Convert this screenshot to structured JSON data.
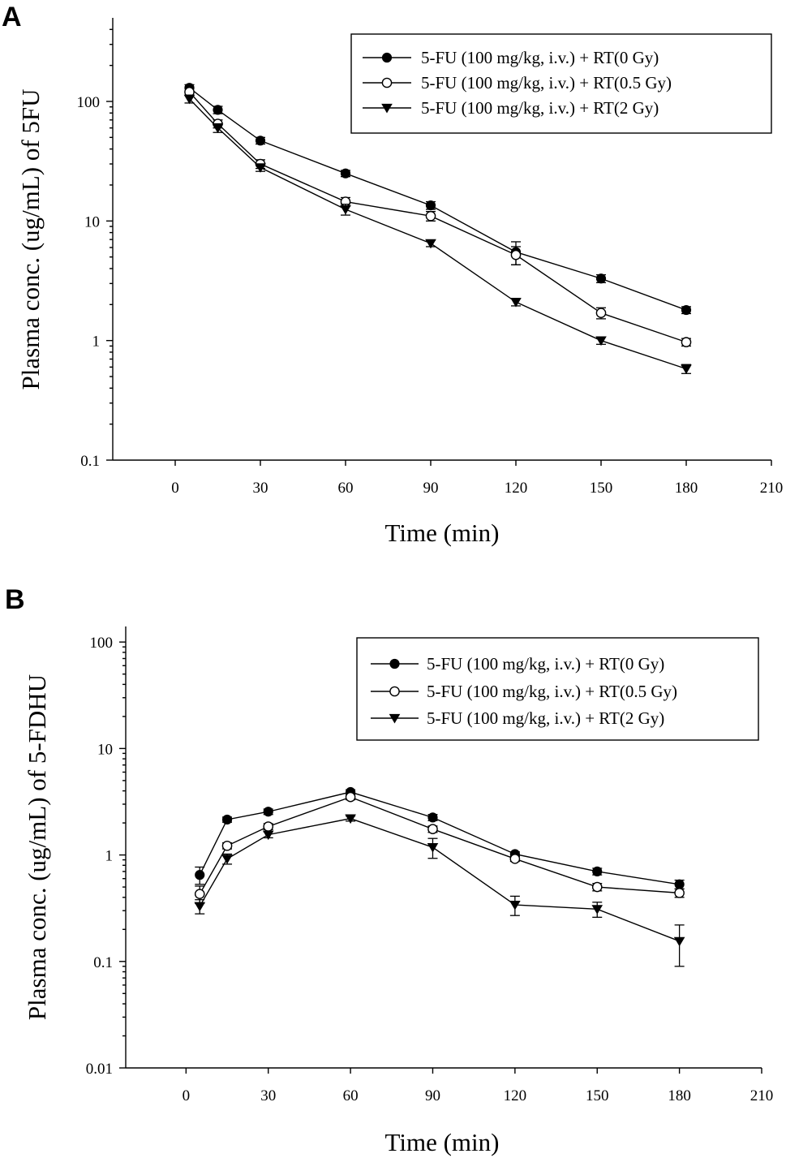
{
  "chart_data": [
    {
      "type": "line",
      "panel_label": "A",
      "title": "",
      "xlabel": "Time (min)",
      "ylabel": "Plasma conc. (ug/mL) of 5FU",
      "y_scale": "log",
      "xlim": [
        -22,
        210
      ],
      "ylim": [
        0.1,
        500
      ],
      "x_ticks": [
        0,
        30,
        60,
        90,
        120,
        150,
        180,
        210
      ],
      "y_ticks": [
        0.1,
        1,
        10,
        100
      ],
      "y_tick_labels": [
        "0.1",
        "1",
        "10",
        "100"
      ],
      "legend_position": "top-right",
      "x": [
        5,
        15,
        30,
        60,
        90,
        120,
        150,
        180
      ],
      "series": [
        {
          "name": "5-FU (100 mg/kg, i.v.) + RT(0 Gy)",
          "marker": "filled-circle",
          "values": [
            130,
            85,
            47,
            25,
            13.5,
            5.5,
            3.3,
            1.8
          ],
          "errors": [
            8,
            6,
            3,
            1.5,
            1,
            1.2,
            0.25,
            0.12
          ]
        },
        {
          "name": "5-FU (100 mg/kg, i.v.) + RT(0.5 Gy)",
          "marker": "open-circle",
          "values": [
            120,
            65,
            30,
            14.5,
            11,
            5.2,
            1.7,
            0.97
          ],
          "errors": [
            8,
            5,
            2.5,
            1.2,
            1,
            0.9,
            0.18,
            0.07
          ]
        },
        {
          "name": "5-FU (100 mg/kg, i.v.) + RT(2 Gy)",
          "marker": "filled-triangle-down",
          "values": [
            105,
            60,
            28,
            12.5,
            6.5,
            2.1,
            1.0,
            0.58
          ],
          "errors": [
            8,
            5,
            2,
            1.3,
            0.4,
            0.15,
            0.07,
            0.05
          ]
        }
      ]
    },
    {
      "type": "line",
      "panel_label": "B",
      "title": "",
      "xlabel": "Time (min)",
      "ylabel": "Plasma conc. (ug/mL) of 5-FDHU",
      "y_scale": "log",
      "xlim": [
        -22,
        210
      ],
      "ylim": [
        0.01,
        140
      ],
      "x_ticks": [
        0,
        30,
        60,
        90,
        120,
        150,
        180,
        210
      ],
      "y_ticks": [
        0.01,
        0.1,
        1,
        10,
        100
      ],
      "y_tick_labels": [
        "0.01",
        "0.1",
        "1",
        "10",
        "100"
      ],
      "legend_position": "top-right",
      "x": [
        5,
        15,
        30,
        60,
        90,
        120,
        150,
        180
      ],
      "series": [
        {
          "name": "5-FU (100 mg/kg, i.v.) + RT(0 Gy)",
          "marker": "filled-circle",
          "values": [
            0.65,
            2.15,
            2.55,
            3.9,
            2.25,
            1.02,
            0.7,
            0.53
          ],
          "errors": [
            0.12,
            0.12,
            0.15,
            0.2,
            0.15,
            0.05,
            0.05,
            0.05
          ]
        },
        {
          "name": "5-FU (100 mg/kg, i.v.) + RT(0.5 Gy)",
          "marker": "open-circle",
          "values": [
            0.43,
            1.22,
            1.85,
            3.5,
            1.75,
            0.92,
            0.5,
            0.44
          ],
          "errors": [
            0.08,
            0.08,
            0.12,
            0.2,
            0.12,
            0.05,
            0.04,
            0.04
          ]
        },
        {
          "name": "5-FU (100 mg/kg, i.v.) + RT(2 Gy)",
          "marker": "filled-triangle-down",
          "values": [
            0.33,
            0.92,
            1.55,
            2.2,
            1.18,
            0.34,
            0.31,
            0.155
          ],
          "errors": [
            0.05,
            0.1,
            0.1,
            0.12,
            0.25,
            0.07,
            0.05,
            0.065
          ]
        }
      ]
    }
  ]
}
